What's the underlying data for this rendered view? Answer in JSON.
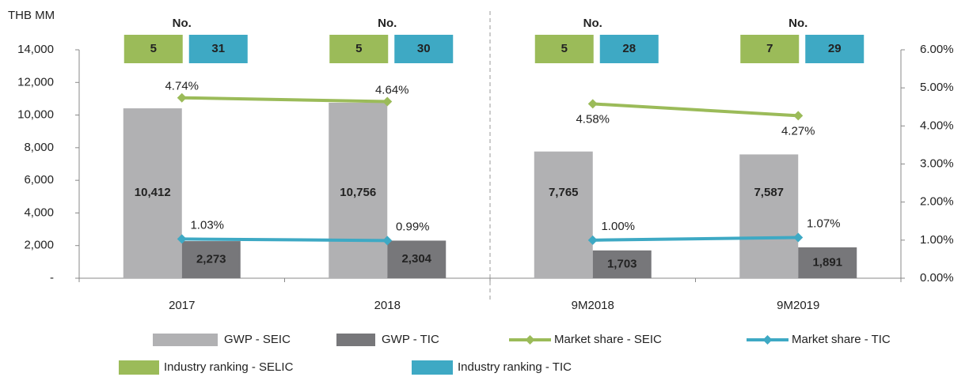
{
  "chart_data": {
    "type": "bar_line",
    "y_label": "THB MM",
    "categories": [
      "2017",
      "2018",
      "9M2018",
      "9M2019"
    ],
    "divider_after": 1,
    "ranking_label": "No.",
    "rankings": [
      {
        "name": "Industry ranking - SELIC",
        "color": "#9bbb59",
        "values": [
          5,
          5,
          5,
          7
        ]
      },
      {
        "name": "Industry ranking - TIC",
        "color": "#3ea9c4",
        "values": [
          31,
          30,
          28,
          29
        ]
      }
    ],
    "series": [
      {
        "name": "GWP - SEIC",
        "kind": "bar",
        "color": "#b1b1b3",
        "values": [
          10412,
          10756,
          7765,
          7587
        ],
        "value_labels": [
          "10,412",
          "10,756",
          "7,765",
          "7,587"
        ]
      },
      {
        "name": "GWP - TIC",
        "kind": "bar",
        "color": "#77777a",
        "values": [
          2273,
          2304,
          1703,
          1891
        ],
        "value_labels": [
          "2,273",
          "2,304",
          "1,703",
          "1,891"
        ]
      },
      {
        "name": "Market share - SEIC",
        "kind": "line",
        "axis": "y2",
        "color": "#9bbb59",
        "values": [
          4.74,
          4.64,
          4.58,
          4.27
        ],
        "value_labels": [
          "4.74%",
          "4.64%",
          "4.58%",
          "4.27%"
        ]
      },
      {
        "name": "Market share - TIC",
        "kind": "line",
        "axis": "y2",
        "color": "#3ea9c4",
        "values": [
          1.03,
          0.99,
          1.0,
          1.07
        ],
        "value_labels": [
          "1.03%",
          "0.99%",
          "1.00%",
          "1.07%"
        ]
      }
    ],
    "ylim": [
      0,
      14000
    ],
    "yticks": [
      {
        "value": 0,
        "label": "-"
      },
      {
        "value": 2000,
        "label": "2,000"
      },
      {
        "value": 4000,
        "label": "4,000"
      },
      {
        "value": 6000,
        "label": "6,000"
      },
      {
        "value": 8000,
        "label": "8,000"
      },
      {
        "value": 10000,
        "label": "10,000"
      },
      {
        "value": 12000,
        "label": "12,000"
      },
      {
        "value": 14000,
        "label": "14,000"
      }
    ],
    "y2lim": [
      0,
      6
    ],
    "y2ticks": [
      {
        "value": 0,
        "label": "0.00%"
      },
      {
        "value": 1,
        "label": "1.00%"
      },
      {
        "value": 2,
        "label": "2.00%"
      },
      {
        "value": 3,
        "label": "3.00%"
      },
      {
        "value": 4,
        "label": "4.00%"
      },
      {
        "value": 5,
        "label": "5.00%"
      },
      {
        "value": 6,
        "label": "6.00%"
      }
    ]
  }
}
